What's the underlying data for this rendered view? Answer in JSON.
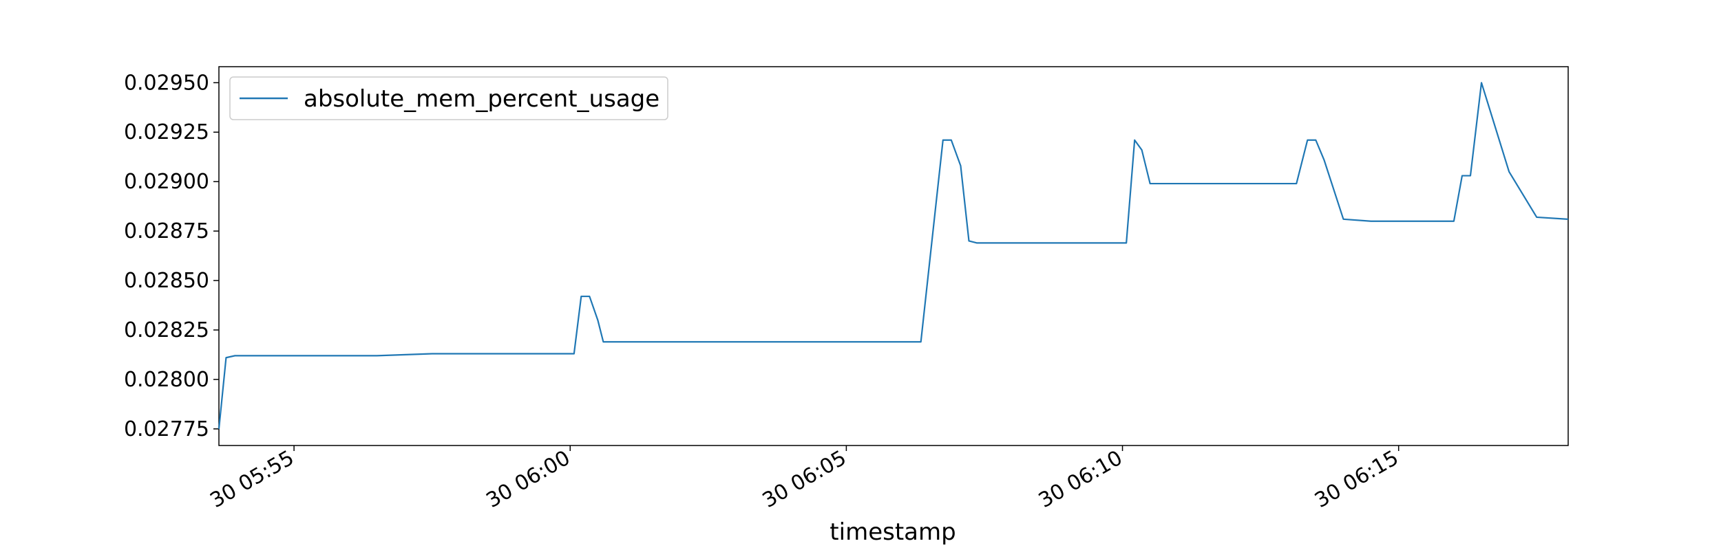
{
  "chart_data": {
    "type": "line",
    "title": "",
    "xlabel": "timestamp",
    "ylabel": "",
    "legend_position": "upper-left",
    "grid": false,
    "colors": {
      "line": "#1f77b4",
      "axis": "#000000",
      "legend_border": "#cccccc"
    },
    "x_ticks": [
      {
        "label": "30 05:55",
        "minute": 5.5
      },
      {
        "label": "30 06:00",
        "minute": 10.5
      },
      {
        "label": "30 06:05",
        "minute": 15.5
      },
      {
        "label": "30 06:10",
        "minute": 20.5
      },
      {
        "label": "30 06:15",
        "minute": 25.5
      }
    ],
    "y_ticks": [
      {
        "label": "0.02775",
        "value": 0.02775
      },
      {
        "label": "0.02800",
        "value": 0.028
      },
      {
        "label": "0.02825",
        "value": 0.02825
      },
      {
        "label": "0.02850",
        "value": 0.0285
      },
      {
        "label": "0.02875",
        "value": 0.02875
      },
      {
        "label": "0.02900",
        "value": 0.029
      },
      {
        "label": "0.02925",
        "value": 0.02925
      },
      {
        "label": "0.02950",
        "value": 0.0295
      }
    ],
    "xlim": [
      4.14,
      28.57
    ],
    "ylim": [
      0.027666,
      0.029581
    ],
    "series": [
      {
        "name": "absolute_mem_percent_usage",
        "x": [
          4.14,
          4.27,
          4.43,
          4.57,
          5.0,
          6.0,
          7.0,
          8.0,
          9.0,
          10.0,
          10.57,
          10.7,
          10.85,
          11.0,
          11.1,
          11.25,
          11.57,
          12.0,
          13.0,
          14.0,
          15.0,
          16.0,
          16.57,
          16.85,
          17.25,
          17.4,
          17.57,
          17.72,
          17.86,
          18.0,
          19.0,
          20.0,
          20.37,
          20.57,
          20.72,
          20.85,
          21.0,
          21.3,
          22.0,
          23.0,
          23.45,
          23.65,
          23.85,
          24.0,
          24.15,
          24.5,
          25.0,
          25.5,
          25.9,
          26.05,
          26.2,
          26.35,
          26.5,
          26.65,
          26.8,
          27.0,
          27.5,
          28.0,
          28.57
        ],
        "y": [
          0.02775,
          0.02811,
          0.02812,
          0.02812,
          0.02812,
          0.02812,
          0.02812,
          0.02813,
          0.02813,
          0.02813,
          0.02813,
          0.02842,
          0.02842,
          0.0283,
          0.02819,
          0.02819,
          0.02819,
          0.02819,
          0.02819,
          0.02819,
          0.02819,
          0.02819,
          0.02819,
          0.02819,
          0.02921,
          0.02921,
          0.02908,
          0.0287,
          0.02869,
          0.02869,
          0.02869,
          0.02869,
          0.02869,
          0.02869,
          0.02921,
          0.02916,
          0.02899,
          0.02899,
          0.02899,
          0.02899,
          0.02899,
          0.02899,
          0.02921,
          0.02921,
          0.02911,
          0.02881,
          0.0288,
          0.0288,
          0.0288,
          0.0288,
          0.0288,
          0.0288,
          0.0288,
          0.02903,
          0.02903,
          0.0295,
          0.02905,
          0.02882,
          0.02881
        ]
      }
    ]
  }
}
